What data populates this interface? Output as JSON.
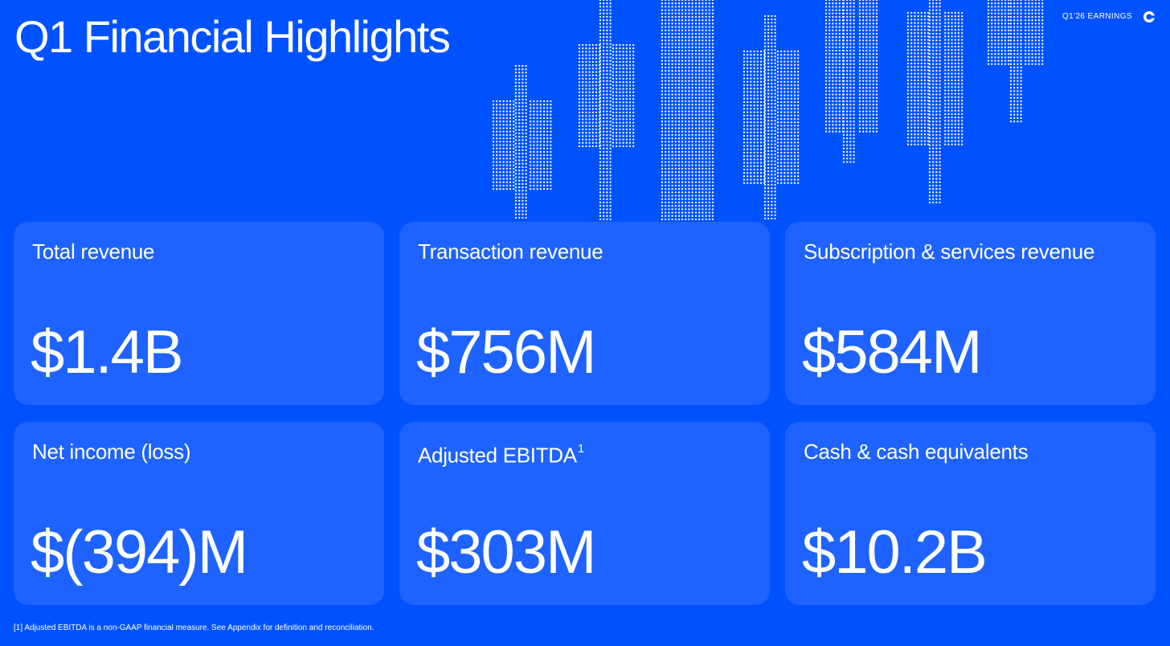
{
  "header": {
    "title": "Q1 Financial Highlights",
    "eyebrow": "Q1'26 EARNINGS",
    "logo_icon": "brand-c-logo-icon"
  },
  "metrics": [
    {
      "label": "Total revenue",
      "superscript": "",
      "value": "$1.4B"
    },
    {
      "label": "Transaction revenue",
      "superscript": "",
      "value": "$756M"
    },
    {
      "label": "Subscription & services revenue",
      "superscript": "",
      "value": "$584M"
    },
    {
      "label": "Net income (loss)",
      "superscript": "",
      "value": "$(394)M"
    },
    {
      "label": "Adjusted EBITDA",
      "superscript": "1",
      "value": "$303M"
    },
    {
      "label": "Cash & cash equivalents",
      "superscript": "",
      "value": "$10.2B"
    }
  ],
  "footnote": "[1] Adjusted EBITDA is a non-GAAP financial measure. See Appendix for definition and reconciliation.",
  "decoration": {
    "name": "dotted-candlestick-graphic",
    "dot_color": "#FFFFFF"
  },
  "colors": {
    "background": "#0052FF",
    "card": "#1E63FF",
    "text": "#FFFFFF"
  }
}
